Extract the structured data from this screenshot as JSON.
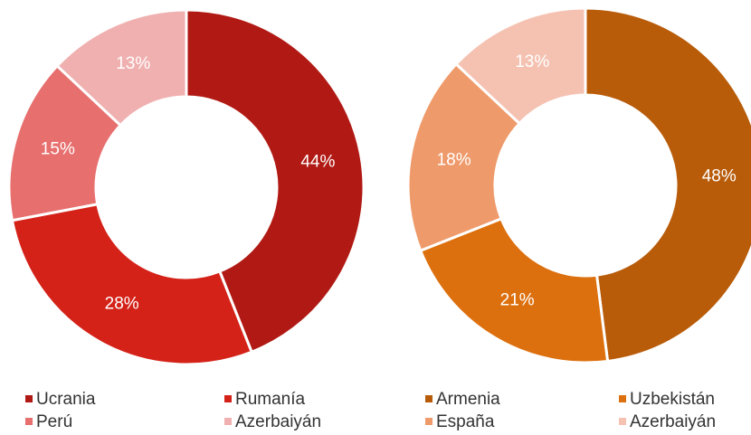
{
  "chart_data": [
    {
      "type": "donut",
      "categories": [
        "Ucrania",
        "Rumanía",
        "Perú",
        "Azerbaiyán"
      ],
      "values": [
        44,
        28,
        15,
        13
      ],
      "value_labels": [
        "44%",
        "28%",
        "15%",
        "13%"
      ],
      "colors": [
        "#b11a14",
        "#d42219",
        "#e76f6e",
        "#f0b0b0"
      ]
    },
    {
      "type": "donut",
      "categories": [
        "Armenia",
        "Uzbekistán",
        "España",
        "Azerbaiyán"
      ],
      "values": [
        48,
        21,
        18,
        13
      ],
      "value_labels": [
        "48%",
        "21%",
        "18%",
        "13%"
      ],
      "colors": [
        "#b85c0a",
        "#dd700e",
        "#ef9a6a",
        "#f5c2b2"
      ]
    }
  ]
}
